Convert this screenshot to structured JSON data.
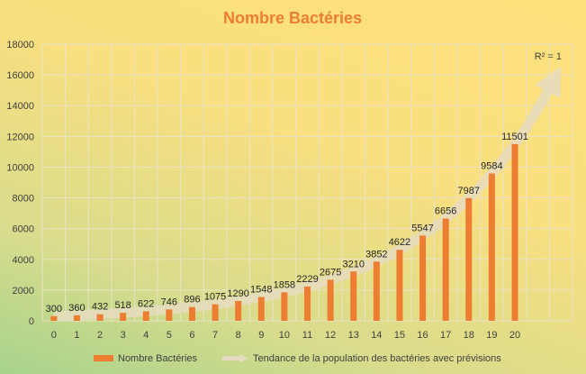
{
  "chart_data": {
    "type": "bar",
    "title": "Nombre Bactéries",
    "categories": [
      "0",
      "1",
      "2",
      "3",
      "4",
      "5",
      "6",
      "7",
      "8",
      "9",
      "10",
      "11",
      "12",
      "13",
      "14",
      "15",
      "16",
      "17",
      "18",
      "19",
      "20"
    ],
    "series": [
      {
        "name": "Nombre Bactéries",
        "values": [
          300,
          360,
          432,
          518,
          622,
          746,
          896,
          1075,
          1290,
          1548,
          1858,
          2229,
          2675,
          3210,
          3852,
          4622,
          5547,
          6656,
          7987,
          9584,
          11501
        ],
        "color": "#ed7d31"
      }
    ],
    "trendline": {
      "name": "Tendance de la population des bactéries avec prévisions",
      "type": "exponential",
      "forecast_forward_periods": 2,
      "r_squared_label": "R² = 1",
      "color": "#e6dcc0"
    },
    "y_ticks": [
      "0",
      "2000",
      "4000",
      "6000",
      "8000",
      "10000",
      "12000",
      "14000",
      "16000",
      "18000"
    ],
    "ylim": [
      0,
      18000
    ],
    "grid": true,
    "legend_position": "bottom",
    "show_data_labels": true
  }
}
